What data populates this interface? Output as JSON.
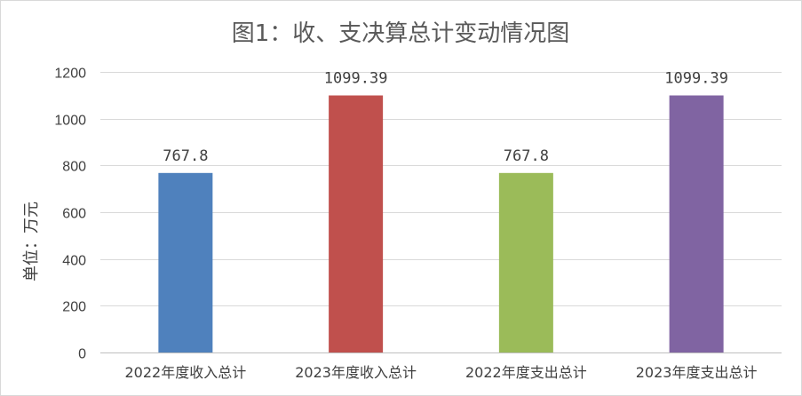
{
  "chart_data": {
    "type": "bar",
    "title": "图1：收、支决算总计变动情况图",
    "ylabel": "单位：万元",
    "xlabel": "",
    "ylim": [
      0,
      1200
    ],
    "yticks": [
      0,
      200,
      400,
      600,
      800,
      1000,
      1200
    ],
    "grid": true,
    "categories": [
      "2022年度收入总计",
      "2023年度收入总计",
      "2022年度支出总计",
      "2023年度支出总计"
    ],
    "values": [
      767.8,
      1099.39,
      767.8,
      1099.39
    ],
    "data_labels": [
      "767.8",
      "1099.39",
      "767.8",
      "1099.39"
    ],
    "colors": [
      "#4f81bd",
      "#c0504d",
      "#9bbb59",
      "#8064a2"
    ]
  }
}
